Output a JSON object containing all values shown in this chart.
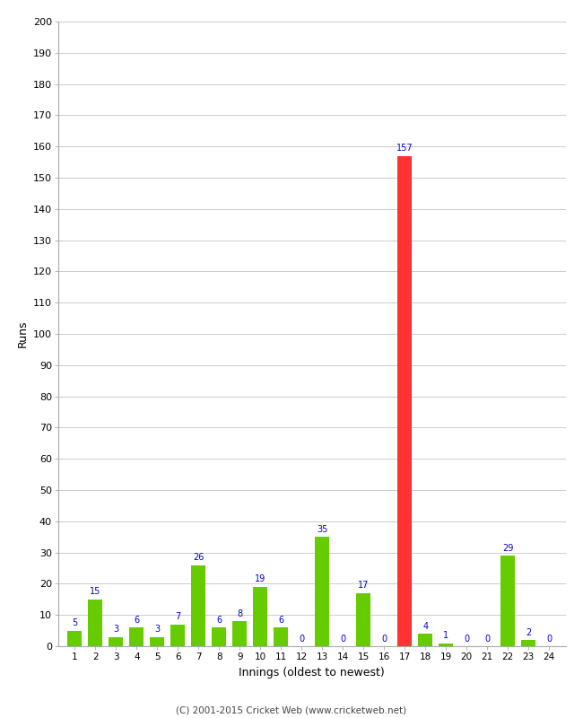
{
  "innings": [
    1,
    2,
    3,
    4,
    5,
    6,
    7,
    8,
    9,
    10,
    11,
    12,
    13,
    14,
    15,
    16,
    17,
    18,
    19,
    20,
    21,
    22,
    23,
    24
  ],
  "runs": [
    5,
    15,
    3,
    6,
    3,
    7,
    26,
    6,
    8,
    19,
    6,
    0,
    35,
    0,
    17,
    0,
    157,
    4,
    1,
    0,
    0,
    29,
    2,
    0
  ],
  "colors": [
    "#66cc00",
    "#66cc00",
    "#66cc00",
    "#66cc00",
    "#66cc00",
    "#66cc00",
    "#66cc00",
    "#66cc00",
    "#66cc00",
    "#66cc00",
    "#66cc00",
    "#66cc00",
    "#66cc00",
    "#66cc00",
    "#66cc00",
    "#66cc00",
    "#ff3333",
    "#66cc00",
    "#66cc00",
    "#66cc00",
    "#66cc00",
    "#66cc00",
    "#66cc00",
    "#66cc00"
  ],
  "ylabel": "Runs",
  "xlabel": "Innings (oldest to newest)",
  "ylim": [
    0,
    200
  ],
  "yticks": [
    0,
    10,
    20,
    30,
    40,
    50,
    60,
    70,
    80,
    90,
    100,
    110,
    120,
    130,
    140,
    150,
    160,
    170,
    180,
    190,
    200
  ],
  "footer": "(C) 2001-2015 Cricket Web (www.cricketweb.net)",
  "label_color": "#0000cc",
  "label_fontsize": 7,
  "bar_width": 0.7,
  "fig_width": 6.5,
  "fig_height": 8.0,
  "dpi": 100
}
